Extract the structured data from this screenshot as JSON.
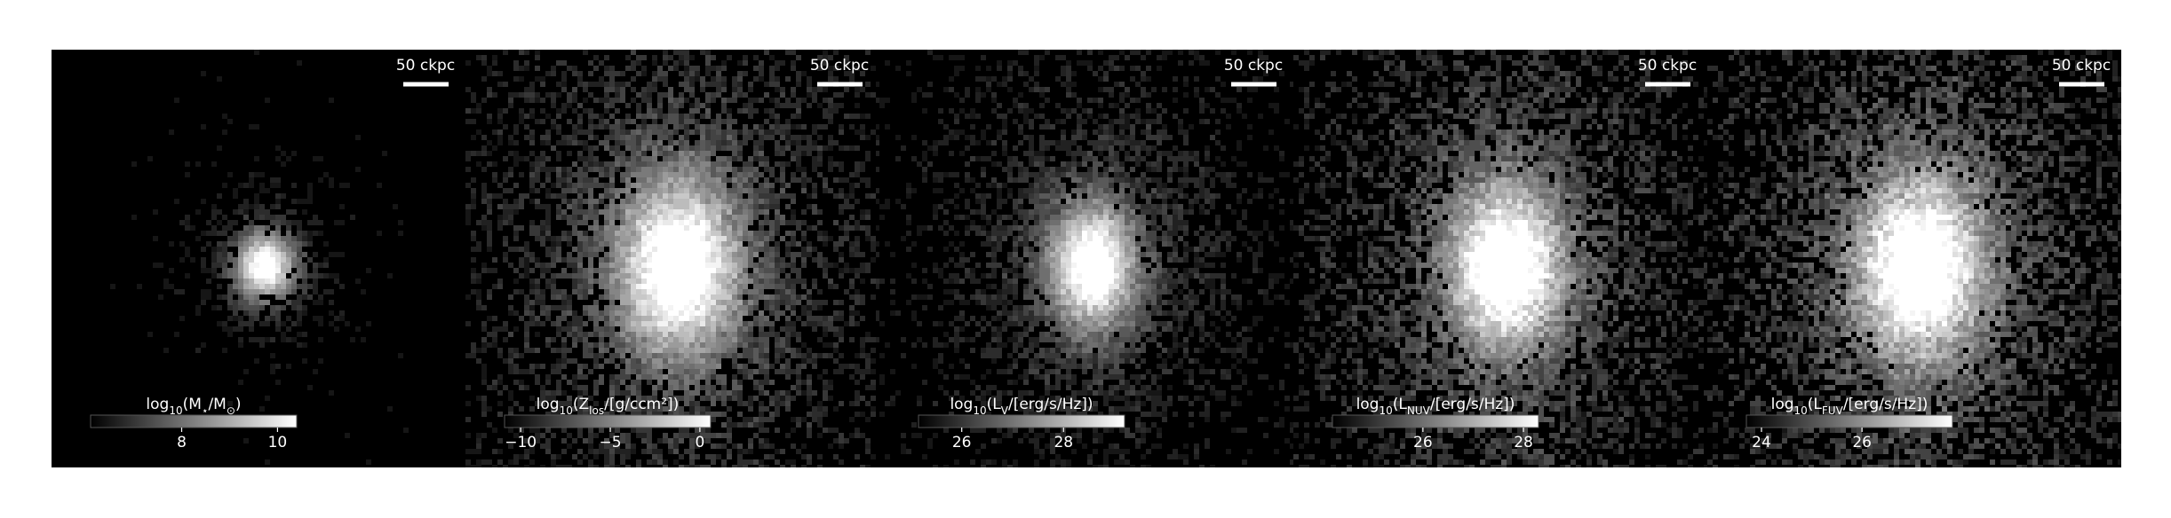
{
  "panels": [
    {
      "scale_bar": "50 ckpc",
      "colorbar": {
        "label": [
          {
            "text": "log"
          },
          {
            "text": "10",
            "sub": true
          },
          {
            "text": "(M"
          },
          {
            "text": "⋆",
            "sub": true
          },
          {
            "text": "/M"
          },
          {
            "text": "⊙",
            "sub": true
          },
          {
            "text": ")"
          }
        ],
        "clim": [
          6.1,
          10.4
        ],
        "ticks": [
          8,
          10
        ]
      }
    },
    {
      "scale_bar": "50 ckpc",
      "colorbar": {
        "label": [
          {
            "text": "log"
          },
          {
            "text": "10",
            "sub": true
          },
          {
            "text": "(Z"
          },
          {
            "text": "los",
            "sub": true
          },
          {
            "text": "/[g/ccm²])"
          }
        ],
        "clim": [
          -10.9,
          0.6
        ],
        "ticks": [
          {
            "value": -10,
            "label": "−10"
          },
          {
            "value": -5,
            "label": "−5"
          },
          0
        ]
      }
    },
    {
      "scale_bar": "50 ckpc",
      "colorbar": {
        "label": [
          {
            "text": "log"
          },
          {
            "text": "10",
            "sub": true
          },
          {
            "text": "(L"
          },
          {
            "text": "V",
            "sub": true
          },
          {
            "text": "/[erg/s/Hz])"
          }
        ],
        "clim": [
          25.15,
          29.2
        ],
        "ticks": [
          26,
          28
        ]
      }
    },
    {
      "scale_bar": "50 ckpc",
      "colorbar": {
        "label": [
          {
            "text": "log"
          },
          {
            "text": "10",
            "sub": true
          },
          {
            "text": "(L"
          },
          {
            "text": "NUV",
            "sub": true
          },
          {
            "text": "/[erg/s/Hz])"
          }
        ],
        "clim": [
          24.2,
          28.3
        ],
        "ticks": [
          26,
          28
        ]
      }
    },
    {
      "scale_bar": "50 ckpc",
      "colorbar": {
        "label": [
          {
            "text": "log"
          },
          {
            "text": "10",
            "sub": true
          },
          {
            "text": "(L"
          },
          {
            "text": "FUV",
            "sub": true
          },
          {
            "text": "/[erg/s/Hz])"
          }
        ],
        "clim": [
          23.7,
          27.8
        ],
        "ticks": [
          24,
          26
        ]
      }
    }
  ]
}
